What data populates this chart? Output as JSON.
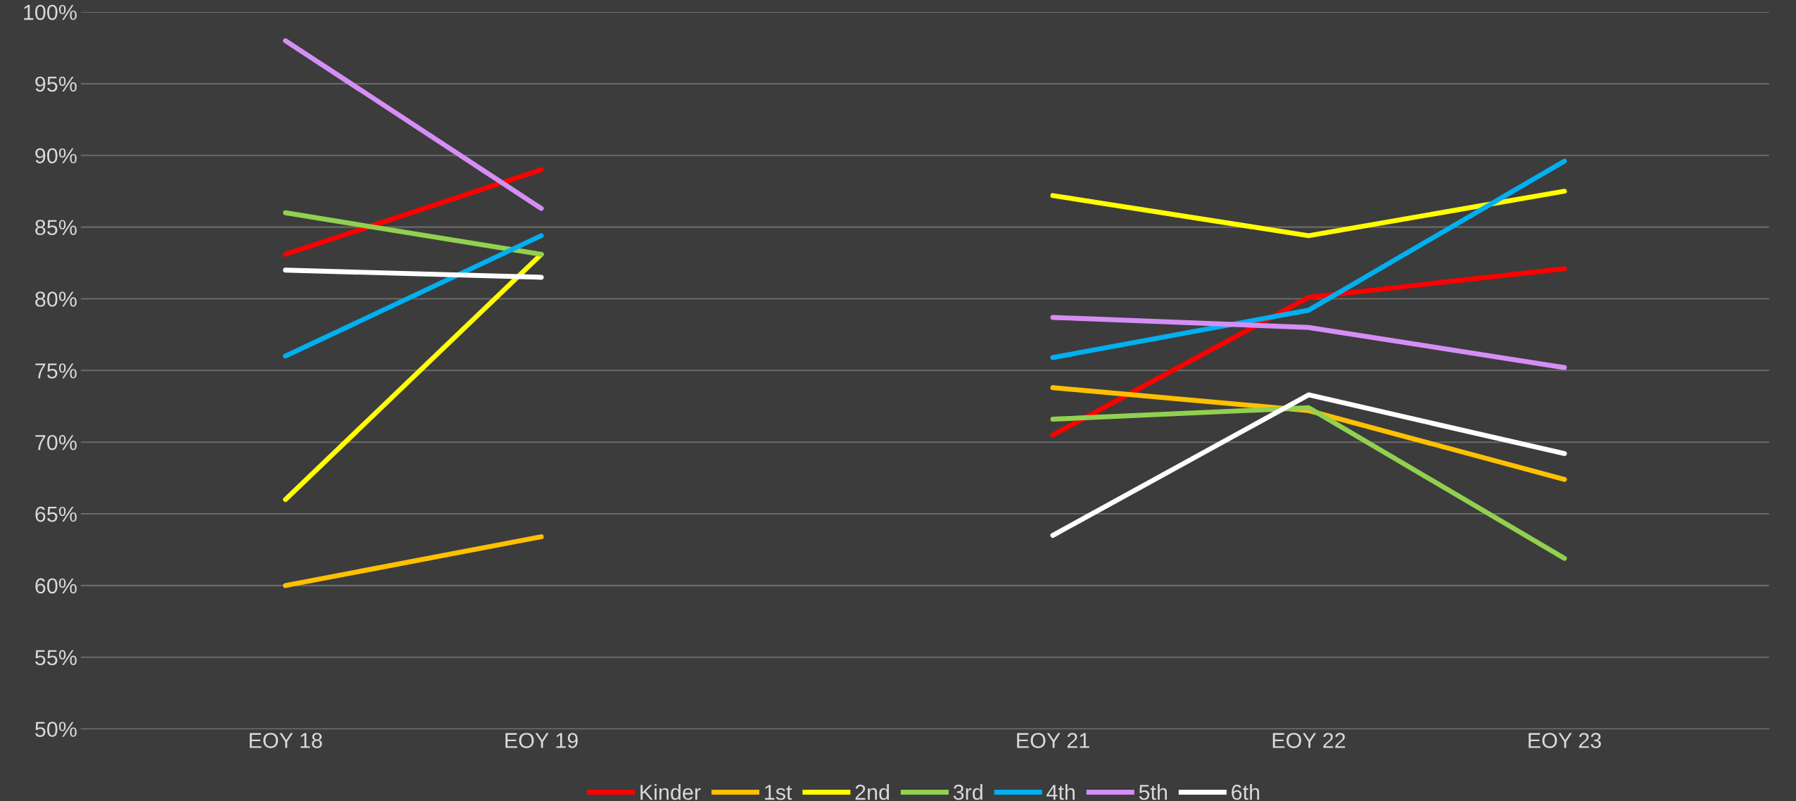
{
  "chart_data": {
    "type": "line",
    "categories": [
      "EOY 18",
      "EOY 19",
      null,
      "EOY 21",
      "EOY 22",
      "EOY 23"
    ],
    "series": [
      {
        "name": "Kinder",
        "color": "#ff0000",
        "values": [
          83.1,
          89.0,
          null,
          70.5,
          80.1,
          82.1
        ]
      },
      {
        "name": "1st",
        "color": "#ffc000",
        "values": [
          60.0,
          63.4,
          null,
          73.8,
          72.2,
          67.4
        ]
      },
      {
        "name": "2nd",
        "color": "#ffff00",
        "values": [
          66.0,
          83.1,
          null,
          87.2,
          84.4,
          87.5
        ]
      },
      {
        "name": "3rd",
        "color": "#92d050",
        "values": [
          86.0,
          83.1,
          null,
          71.6,
          72.4,
          61.9
        ]
      },
      {
        "name": "4th",
        "color": "#00b0f0",
        "values": [
          76.0,
          84.4,
          null,
          75.9,
          79.2,
          89.6
        ]
      },
      {
        "name": "5th",
        "color": "#d58ef5",
        "values": [
          98.0,
          86.3,
          null,
          78.7,
          78.0,
          75.2
        ]
      },
      {
        "name": "6th",
        "color": "#ffffff",
        "values": [
          82.0,
          81.5,
          null,
          63.5,
          73.3,
          69.2
        ]
      }
    ],
    "ylim": [
      50,
      100
    ],
    "yticks": [
      {
        "value": 50,
        "label": "50%"
      },
      {
        "value": 55,
        "label": "55%"
      },
      {
        "value": 60,
        "label": "60%"
      },
      {
        "value": 65,
        "label": "65%"
      },
      {
        "value": 70,
        "label": "70%"
      },
      {
        "value": 75,
        "label": "75%"
      },
      {
        "value": 80,
        "label": "80%"
      },
      {
        "value": 85,
        "label": "85%"
      },
      {
        "value": 90,
        "label": "90%"
      },
      {
        "value": 95,
        "label": "95%"
      },
      {
        "value": 100,
        "label": "100%"
      }
    ],
    "grid": "y",
    "legend": "bottom",
    "marker": "none",
    "line_style": "solid"
  }
}
